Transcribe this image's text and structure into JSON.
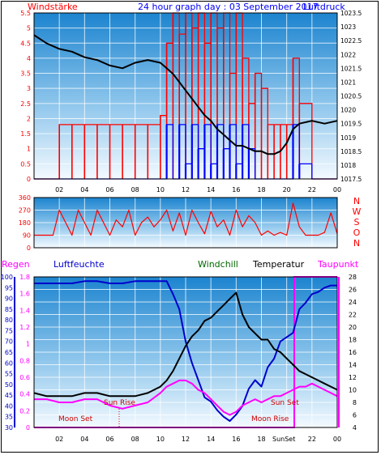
{
  "header": {
    "left_label": "Windstärke",
    "title": "24 hour graph day : 03 September 2017",
    "right_label": "Luftdruck"
  },
  "wind_panel": {
    "hours": [
      "02",
      "04",
      "06",
      "08",
      "10",
      "12",
      "14",
      "16",
      "18",
      "20",
      "22",
      "00"
    ]
  },
  "direction_panel": {
    "compass": [
      "N",
      "W",
      "S",
      "O",
      "N"
    ]
  },
  "climate_panel": {
    "legend": {
      "regen": "Regen",
      "luftfeuchte": "Luftfeuchte",
      "windchill": "Windchill",
      "temperatur": "Temperatur",
      "taupunkt": "Taupunkt"
    },
    "annotations": {
      "moon_set_1": "Moon Set",
      "sun_rise": "Sun Rise",
      "sun_set": "Sun Set",
      "moon_rise": "Moon Rise",
      "sun_set_axis": "SunSet"
    },
    "hours": [
      "02",
      "04",
      "06",
      "08",
      "10",
      "12",
      "14",
      "16",
      "18",
      "20",
      "22",
      "00"
    ]
  },
  "chart_data": [
    {
      "type": "line",
      "title": "24 hour graph day : 03 September 2017",
      "ylabel": "Windstärke",
      "y2label": "Luftdruck",
      "x_unit": "hour",
      "xlim": [
        0,
        24
      ],
      "ylim": [
        0,
        5.5
      ],
      "y2lim": [
        1017.5,
        1023.5
      ],
      "xticks": [
        "02",
        "04",
        "06",
        "08",
        "10",
        "12",
        "14",
        "16",
        "18",
        "20",
        "22",
        "00"
      ],
      "yticks": [
        "0",
        "0.5",
        "1",
        "1.5",
        "2",
        "2.5",
        "3",
        "3.5",
        "4",
        "4.5",
        "5",
        "5.5"
      ],
      "y2ticks": [
        "1017.5",
        "1018",
        "1018.5",
        "1019",
        "1019.5",
        "1020",
        "1020.5",
        "1021",
        "1021.5",
        "1022",
        "1022.5",
        "1023",
        "1023.5"
      ],
      "colors": {
        "gust": "#ff0000",
        "speed": "#0000ff",
        "pressure": "#000000"
      },
      "series": [
        {
          "x": [
            0,
            1,
            2,
            3,
            4,
            5,
            6,
            7,
            8,
            9,
            10,
            10.5,
            11,
            11.5,
            12,
            12.5,
            13,
            13.5,
            14,
            14.5,
            15,
            15.5,
            16,
            16.5,
            17,
            17.5,
            18,
            18.5,
            19,
            19.5,
            20,
            20.5,
            21,
            22,
            23,
            24
          ],
          "values": [
            1022.7,
            1022.4,
            1022.2,
            1022.1,
            1021.9,
            1021.8,
            1021.6,
            1021.5,
            1021.7,
            1021.8,
            1021.7,
            1021.5,
            1021.3,
            1021.0,
            1020.7,
            1020.4,
            1020.1,
            1019.8,
            1019.6,
            1019.3,
            1019.1,
            1018.9,
            1018.7,
            1018.7,
            1018.6,
            1018.5,
            1018.5,
            1018.4,
            1018.4,
            1018.5,
            1018.8,
            1019.3,
            1019.5,
            1019.6,
            1019.5,
            1019.6
          ]
        },
        {
          "x": [
            0,
            1,
            2,
            3,
            4,
            5,
            6,
            7,
            8,
            9,
            10,
            10.5,
            11,
            11.5,
            12,
            12.5,
            13,
            13.5,
            14,
            14.5,
            15,
            15.5,
            16,
            16.5,
            17,
            17.5,
            18,
            18.5,
            19,
            19.5,
            20,
            20.5,
            21,
            22,
            23,
            24
          ],
          "values": [
            0,
            0,
            1.8,
            1.8,
            1.8,
            1.8,
            1.8,
            1.8,
            1.8,
            1.8,
            2.1,
            4.5,
            5.5,
            4.8,
            5.5,
            5.0,
            5.5,
            4.5,
            5.5,
            5.0,
            5.5,
            3.5,
            5.5,
            4.0,
            2.5,
            3.5,
            3.0,
            1.8,
            1.8,
            1.8,
            1.8,
            4.0,
            2.5,
            0,
            0,
            0
          ]
        },
        {
          "x": [
            0,
            1,
            2,
            3,
            4,
            5,
            6,
            7,
            8,
            9,
            10,
            10.5,
            11,
            11.5,
            12,
            12.5,
            13,
            13.5,
            14,
            14.5,
            15,
            15.5,
            16,
            16.5,
            17,
            17.5,
            18,
            18.5,
            19,
            19.5,
            20,
            20.5,
            21,
            22,
            23,
            24
          ],
          "values": [
            0,
            0,
            0,
            0,
            0,
            0,
            0,
            0,
            0,
            0,
            0,
            1.8,
            0,
            1.8,
            0.5,
            1.8,
            1.0,
            1.8,
            0.5,
            1.8,
            1.0,
            1.8,
            0.5,
            1.8,
            1.0,
            0,
            0,
            0,
            0,
            0,
            0,
            1.8,
            0.5,
            0,
            0,
            0
          ]
        }
      ]
    },
    {
      "type": "line",
      "x_unit": "hour",
      "xlim": [
        0,
        24
      ],
      "ylim": [
        0,
        360
      ],
      "yticks": [
        "0",
        "90",
        "180",
        "270",
        "360"
      ],
      "y2ticks": [
        "N",
        "W",
        "S",
        "O",
        "N"
      ],
      "colors": {
        "direction": "#ff0000"
      },
      "series": [
        {
          "x": [
            0,
            1,
            1.5,
            2,
            2.5,
            3,
            3.5,
            4,
            4.5,
            5,
            5.5,
            6,
            6.5,
            7,
            7.5,
            8,
            8.5,
            9,
            9.5,
            10,
            10.5,
            11,
            11.5,
            12,
            12.5,
            13,
            13.5,
            14,
            14.5,
            15,
            15.5,
            16,
            16.5,
            17,
            17.5,
            18,
            18.5,
            19,
            19.5,
            20,
            20.5,
            21,
            21.5,
            22,
            22.5,
            23,
            23.5,
            24
          ],
          "values": [
            90,
            90,
            90,
            270,
            180,
            90,
            270,
            180,
            90,
            270,
            180,
            90,
            200,
            150,
            270,
            90,
            180,
            220,
            150,
            200,
            270,
            120,
            250,
            90,
            270,
            180,
            100,
            260,
            150,
            200,
            90,
            270,
            150,
            230,
            180,
            90,
            120,
            90,
            110,
            90,
            320,
            150,
            90,
            90,
            90,
            110,
            250,
            100
          ]
        }
      ]
    },
    {
      "type": "line",
      "x_unit": "hour",
      "xlim": [
        0,
        24
      ],
      "ylabel": "Luftfeuchte",
      "ylim": [
        30,
        100
      ],
      "rain_ylabel": "Regen",
      "rain_ylim": [
        0,
        1.8
      ],
      "y2label": "Temperatur",
      "y2lim": [
        4,
        28
      ],
      "yticks": [
        "30",
        "35",
        "40",
        "45",
        "50",
        "55",
        "60",
        "65",
        "70",
        "75",
        "80",
        "85",
        "90",
        "95",
        "100"
      ],
      "rain_ticks": [
        "0",
        "0.2",
        "0.4",
        "0.6",
        "0.8",
        "1",
        "1.2",
        "1.4",
        "1.6",
        "1.8"
      ],
      "y2ticks": [
        "4",
        "6",
        "8",
        "10",
        "12",
        "14",
        "16",
        "18",
        "20",
        "22",
        "24",
        "26",
        "28"
      ],
      "colors": {
        "humidity": "#0000cc",
        "temperature": "#000000",
        "dewpoint": "#ff00ff",
        "rain": "#ff00ff"
      },
      "series": [
        {
          "name": "Luftfeuchte",
          "x": [
            0,
            1,
            2,
            3,
            4,
            5,
            6,
            7,
            8,
            9,
            10,
            10.5,
            11,
            11.5,
            12,
            12.5,
            13,
            13.5,
            14,
            14.5,
            15,
            15.5,
            16,
            16.5,
            17,
            17.5,
            18,
            18.5,
            19,
            19.5,
            20,
            20.5,
            21,
            21.5,
            22,
            22.5,
            23,
            23.5,
            24
          ],
          "values": [
            97,
            97,
            97,
            97,
            98,
            98,
            97,
            97,
            98,
            98,
            98,
            98,
            92,
            85,
            70,
            60,
            52,
            44,
            42,
            38,
            35,
            33,
            36,
            40,
            48,
            52,
            49,
            58,
            62,
            70,
            72,
            74,
            85,
            88,
            92,
            93,
            95,
            96,
            96
          ]
        },
        {
          "name": "Temperatur",
          "x": [
            0,
            1,
            2,
            3,
            4,
            5,
            6,
            7,
            8,
            9,
            10,
            10.5,
            11,
            11.5,
            12,
            12.5,
            13,
            13.5,
            14,
            14.5,
            15,
            15.5,
            16,
            16.5,
            17,
            17.5,
            18,
            18.5,
            19,
            19.5,
            20,
            20.5,
            21,
            21.5,
            22,
            22.5,
            23,
            23.5,
            24
          ],
          "values": [
            9.5,
            9.0,
            9.0,
            9.0,
            9.5,
            9.5,
            9.0,
            9.0,
            9.0,
            9.5,
            10.5,
            11.5,
            13.0,
            15.0,
            17.0,
            18.5,
            19.5,
            21.0,
            21.5,
            22.5,
            23.5,
            24.5,
            25.5,
            22.0,
            20.0,
            19.0,
            18.0,
            18.0,
            16.5,
            16.0,
            15.0,
            14.0,
            13.0,
            12.5,
            12.0,
            11.5,
            11.0,
            10.5,
            10.0
          ]
        },
        {
          "name": "Taupunkt",
          "x": [
            0,
            1,
            2,
            3,
            4,
            5,
            6,
            7,
            8,
            9,
            10,
            10.5,
            11,
            11.5,
            12,
            12.5,
            13,
            13.5,
            14,
            14.5,
            15,
            15.5,
            16,
            16.5,
            17,
            17.5,
            18,
            18.5,
            19,
            19.5,
            20,
            20.5,
            21,
            21.5,
            22,
            22.5,
            23,
            23.5,
            24
          ],
          "values": [
            8.5,
            8.5,
            8.0,
            8.0,
            8.5,
            8.5,
            7.5,
            7.0,
            7.5,
            8.0,
            9.5,
            10.5,
            11.0,
            11.5,
            11.5,
            11.0,
            10.0,
            9.5,
            8.5,
            7.5,
            6.5,
            6.0,
            6.5,
            7.5,
            8.0,
            8.5,
            8.0,
            8.5,
            9.0,
            9.0,
            9.5,
            10.0,
            10.5,
            10.5,
            11.0,
            10.5,
            10.0,
            9.5,
            9.0
          ]
        },
        {
          "name": "Regen",
          "x": [
            0,
            20.5,
            20.5,
            20.6,
            20.6,
            24
          ],
          "values": [
            0,
            0,
            0,
            0,
            1.8,
            1.8
          ]
        }
      ]
    }
  ]
}
